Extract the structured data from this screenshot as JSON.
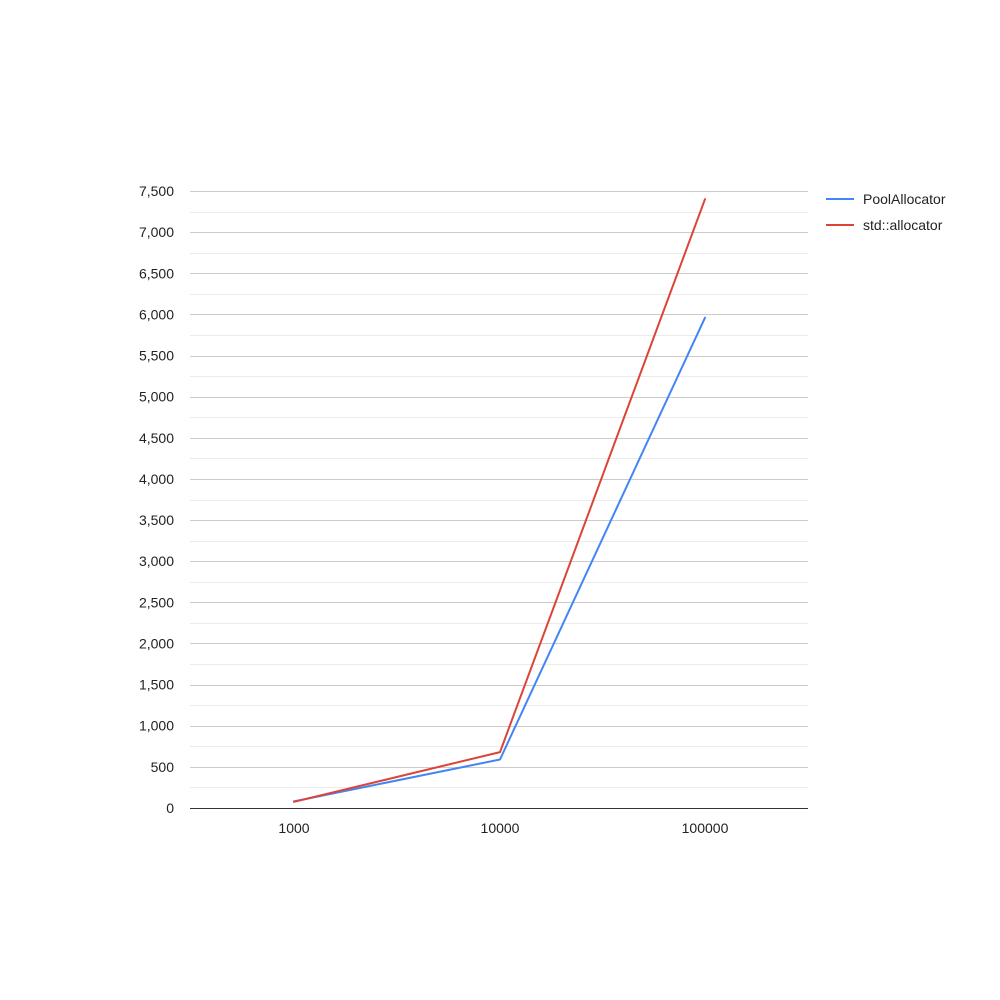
{
  "chart_data": {
    "type": "line",
    "x": [
      "1000",
      "10000",
      "100000"
    ],
    "series": [
      {
        "name": "PoolAllocator",
        "values": [
          80,
          590,
          5960
        ],
        "color": "#4285f4"
      },
      {
        "name": "std::allocator",
        "values": [
          75,
          680,
          7400
        ],
        "color": "#db4437"
      }
    ],
    "y_ticks": [
      "0",
      "500",
      "1,000",
      "1,500",
      "2,000",
      "2,500",
      "3,000",
      "3,500",
      "4,000",
      "4,500",
      "5,000",
      "5,500",
      "6,000",
      "6,500",
      "7,000",
      "7,500"
    ],
    "ylim": [
      0,
      7500
    ],
    "y_tick_step": 500,
    "grid": true,
    "minor_grid": true,
    "legend_position": "right",
    "title": "",
    "xlabel": "",
    "ylabel": ""
  }
}
